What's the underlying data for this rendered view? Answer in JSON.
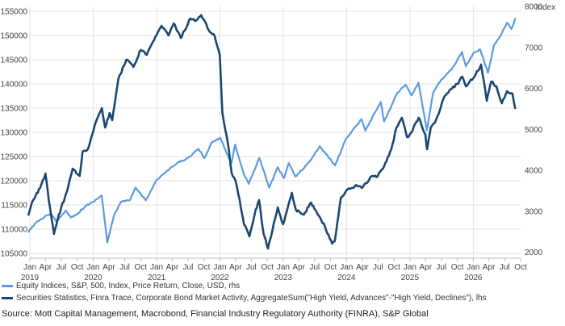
{
  "chart_data": {
    "type": "line",
    "title": "",
    "xlabel": "",
    "ylabel_left": "",
    "ylabel_right": "Index",
    "xlim": [
      "2019-01-01",
      "2026-10-01"
    ],
    "ylim_left": [
      104000,
      156000
    ],
    "ylim_right": [
      1857,
      8000
    ],
    "yticks_left": [
      105000,
      110000,
      115000,
      120000,
      125000,
      130000,
      135000,
      140000,
      145000,
      150000,
      155000
    ],
    "yticks_right": [
      2000,
      3000,
      4000,
      5000,
      6000,
      7000,
      8000
    ],
    "x_month_ticks": [
      {
        "date": "2019-01-01",
        "label": "Jan"
      },
      {
        "date": "2019-04-01",
        "label": "Apr"
      },
      {
        "date": "2019-07-01",
        "label": "Jul"
      },
      {
        "date": "2019-10-01",
        "label": "Oct"
      },
      {
        "date": "2020-01-01",
        "label": "Jan"
      },
      {
        "date": "2020-04-01",
        "label": "Apr"
      },
      {
        "date": "2020-07-01",
        "label": "Jul"
      },
      {
        "date": "2020-10-01",
        "label": "Oct"
      },
      {
        "date": "2021-01-01",
        "label": "Jan"
      },
      {
        "date": "2021-04-01",
        "label": "Apr"
      },
      {
        "date": "2021-07-01",
        "label": "Jul"
      },
      {
        "date": "2021-10-01",
        "label": "Oct"
      },
      {
        "date": "2022-01-01",
        "label": "Jan"
      },
      {
        "date": "2022-04-01",
        "label": "Apr"
      },
      {
        "date": "2022-07-01",
        "label": "Jul"
      },
      {
        "date": "2022-10-01",
        "label": "Oct"
      },
      {
        "date": "2023-01-01",
        "label": "Jan"
      },
      {
        "date": "2023-04-01",
        "label": "Apr"
      },
      {
        "date": "2023-07-01",
        "label": "Jul"
      },
      {
        "date": "2023-10-01",
        "label": "Oct"
      },
      {
        "date": "2024-01-01",
        "label": "Jan"
      },
      {
        "date": "2024-04-01",
        "label": "Apr"
      },
      {
        "date": "2024-07-01",
        "label": "Jul"
      },
      {
        "date": "2024-10-01",
        "label": "Oct"
      },
      {
        "date": "2025-01-01",
        "label": "Jan"
      },
      {
        "date": "2025-04-01",
        "label": "Apr"
      },
      {
        "date": "2025-07-01",
        "label": "Jul"
      },
      {
        "date": "2025-10-01",
        "label": "Oct"
      },
      {
        "date": "2026-01-01",
        "label": "Jan"
      },
      {
        "date": "2026-04-01",
        "label": "Apr"
      },
      {
        "date": "2026-07-01",
        "label": "Jul"
      },
      {
        "date": "2026-10-01",
        "label": "Oct"
      }
    ],
    "x_year_labels": [
      {
        "date": "2019-01-01",
        "label": "2019"
      },
      {
        "date": "2020-01-01",
        "label": "2020"
      },
      {
        "date": "2021-01-01",
        "label": "2021"
      },
      {
        "date": "2022-01-01",
        "label": "2022"
      },
      {
        "date": "2023-01-01",
        "label": "2023"
      },
      {
        "date": "2024-01-01",
        "label": "2024"
      },
      {
        "date": "2025-01-01",
        "label": "2025"
      },
      {
        "date": "2026-01-01",
        "label": "2026"
      }
    ],
    "grid": true,
    "legend_position": "bottom",
    "series": [
      {
        "name": "Equity Indices, S&P, 500, Index, Price Return, Close, USD, rhs",
        "axis": "right",
        "color": "#5b9be0",
        "points": [
          [
            "2018-12-24",
            2500
          ],
          [
            "2019-01-15",
            2630
          ],
          [
            "2019-03-01",
            2800
          ],
          [
            "2019-04-30",
            2950
          ],
          [
            "2019-06-03",
            2750
          ],
          [
            "2019-07-26",
            3020
          ],
          [
            "2019-08-26",
            2850
          ],
          [
            "2019-10-01",
            2940
          ],
          [
            "2019-11-15",
            3120
          ],
          [
            "2019-12-31",
            3230
          ],
          [
            "2020-02-19",
            3390
          ],
          [
            "2020-03-23",
            2240
          ],
          [
            "2020-04-30",
            2900
          ],
          [
            "2020-06-08",
            3230
          ],
          [
            "2020-07-31",
            3270
          ],
          [
            "2020-09-02",
            3580
          ],
          [
            "2020-10-30",
            3270
          ],
          [
            "2020-12-31",
            3760
          ],
          [
            "2021-02-15",
            3930
          ],
          [
            "2021-04-30",
            4180
          ],
          [
            "2021-06-30",
            4300
          ],
          [
            "2021-08-31",
            4520
          ],
          [
            "2021-10-04",
            4300
          ],
          [
            "2021-11-18",
            4700
          ],
          [
            "2022-01-03",
            4790
          ],
          [
            "2022-03-08",
            4170
          ],
          [
            "2022-03-29",
            4630
          ],
          [
            "2022-05-20",
            3900
          ],
          [
            "2022-06-16",
            3670
          ],
          [
            "2022-08-16",
            4300
          ],
          [
            "2022-10-12",
            3580
          ],
          [
            "2022-12-01",
            4080
          ],
          [
            "2023-01-05",
            3810
          ],
          [
            "2023-02-02",
            4180
          ],
          [
            "2023-03-13",
            3850
          ],
          [
            "2023-05-30",
            4200
          ],
          [
            "2023-07-31",
            4590
          ],
          [
            "2023-10-27",
            4120
          ],
          [
            "2023-12-29",
            4770
          ],
          [
            "2024-03-28",
            5250
          ],
          [
            "2024-04-19",
            4970
          ],
          [
            "2024-07-16",
            5670
          ],
          [
            "2024-08-05",
            5190
          ],
          [
            "2024-10-15",
            5850
          ],
          [
            "2024-12-06",
            6090
          ],
          [
            "2025-01-10",
            5830
          ],
          [
            "2025-02-19",
            6140
          ],
          [
            "2025-04-08",
            4980
          ],
          [
            "2025-05-15",
            5900
          ],
          [
            "2025-06-30",
            6210
          ],
          [
            "2025-08-29",
            6460
          ],
          [
            "2025-10-28",
            6890
          ],
          [
            "2025-11-20",
            6540
          ],
          [
            "2025-12-31",
            6850
          ],
          [
            "2026-02-10",
            6950
          ],
          [
            "2026-03-27",
            6380
          ],
          [
            "2026-04-30",
            7050
          ],
          [
            "2026-06-15",
            7350
          ],
          [
            "2026-07-15",
            7600
          ],
          [
            "2026-08-10",
            7450
          ],
          [
            "2026-08-31",
            7700
          ]
        ]
      },
      {
        "name": "Securities Statistics, Finra Trace, Corporate Bond Market Activity, AggregateSum(\"High Yield, Advances\"-\"High Yield, Declines\"), lhs",
        "axis": "left",
        "color": "#1b4771",
        "points": [
          [
            "2018-12-24",
            113000
          ],
          [
            "2019-01-20",
            116000
          ],
          [
            "2019-03-01",
            118500
          ],
          [
            "2019-04-01",
            121500
          ],
          [
            "2019-04-20",
            116000
          ],
          [
            "2019-05-20",
            109000
          ],
          [
            "2019-06-10",
            112000
          ],
          [
            "2019-07-01",
            114500
          ],
          [
            "2019-08-05",
            118000
          ],
          [
            "2019-09-05",
            122500
          ],
          [
            "2019-10-15",
            121000
          ],
          [
            "2019-11-01",
            126000
          ],
          [
            "2019-12-01",
            126500
          ],
          [
            "2020-01-15",
            132000
          ],
          [
            "2020-02-20",
            135000
          ],
          [
            "2020-03-10",
            131000
          ],
          [
            "2020-04-05",
            134000
          ],
          [
            "2020-04-20",
            132500
          ],
          [
            "2020-05-25",
            141000
          ],
          [
            "2020-07-10",
            145000
          ],
          [
            "2020-08-20",
            143500
          ],
          [
            "2020-10-01",
            147000
          ],
          [
            "2020-11-05",
            146000
          ],
          [
            "2020-12-31",
            150000
          ],
          [
            "2021-01-30",
            152000
          ],
          [
            "2021-03-10",
            150000
          ],
          [
            "2021-04-10",
            152500
          ],
          [
            "2021-05-20",
            149500
          ],
          [
            "2021-07-15",
            153500
          ],
          [
            "2021-08-10",
            153000
          ],
          [
            "2021-09-15",
            154200
          ],
          [
            "2021-10-30",
            151000
          ],
          [
            "2021-12-01",
            150000
          ],
          [
            "2021-12-31",
            146000
          ],
          [
            "2022-01-15",
            134000
          ],
          [
            "2022-02-15",
            128000
          ],
          [
            "2022-03-10",
            121500
          ],
          [
            "2022-04-01",
            120000
          ],
          [
            "2022-04-25",
            116000
          ],
          [
            "2022-05-20",
            111000
          ],
          [
            "2022-06-20",
            108500
          ],
          [
            "2022-07-20",
            113000
          ],
          [
            "2022-08-15",
            116000
          ],
          [
            "2022-09-10",
            109000
          ],
          [
            "2022-10-05",
            106000
          ],
          [
            "2022-11-01",
            110000
          ],
          [
            "2022-12-01",
            114500
          ],
          [
            "2022-12-31",
            111000
          ],
          [
            "2023-01-31",
            115000
          ],
          [
            "2023-02-20",
            117500
          ],
          [
            "2023-03-15",
            114000
          ],
          [
            "2023-04-30",
            113000
          ],
          [
            "2023-06-10",
            115500
          ],
          [
            "2023-07-20",
            113000
          ],
          [
            "2023-08-30",
            110500
          ],
          [
            "2023-10-10",
            107000
          ],
          [
            "2023-10-25",
            107500
          ],
          [
            "2023-11-30",
            116500
          ],
          [
            "2023-12-31",
            118000
          ],
          [
            "2024-02-20",
            119000
          ],
          [
            "2024-03-30",
            118500
          ],
          [
            "2024-04-20",
            119500
          ],
          [
            "2024-05-30",
            121000
          ],
          [
            "2024-06-30",
            121000
          ],
          [
            "2024-08-05",
            123000
          ],
          [
            "2024-09-15",
            126500
          ],
          [
            "2024-10-15",
            131000
          ],
          [
            "2024-11-15",
            133000
          ],
          [
            "2024-12-15",
            129000
          ],
          [
            "2025-01-10",
            130000
          ],
          [
            "2025-02-20",
            133000
          ],
          [
            "2025-03-31",
            129500
          ],
          [
            "2025-04-10",
            126500
          ],
          [
            "2025-05-01",
            131000
          ],
          [
            "2025-05-25",
            132000
          ],
          [
            "2025-06-30",
            135500
          ],
          [
            "2025-07-20",
            137500
          ],
          [
            "2025-08-30",
            139000
          ],
          [
            "2025-09-30",
            140000
          ],
          [
            "2025-10-30",
            141500
          ],
          [
            "2025-11-20",
            139500
          ],
          [
            "2026-01-15",
            142000
          ],
          [
            "2026-02-15",
            144000
          ],
          [
            "2026-03-20",
            136500
          ],
          [
            "2026-04-15",
            140500
          ],
          [
            "2026-05-15",
            139500
          ],
          [
            "2026-06-15",
            136000
          ],
          [
            "2026-07-15",
            138500
          ],
          [
            "2026-08-15",
            138000
          ],
          [
            "2026-08-31",
            135000
          ]
        ]
      }
    ]
  },
  "source": "Source: Mott Capital Management, Macrobond, Financial Industry Regulatory Authority (FINRA), S&P Global"
}
